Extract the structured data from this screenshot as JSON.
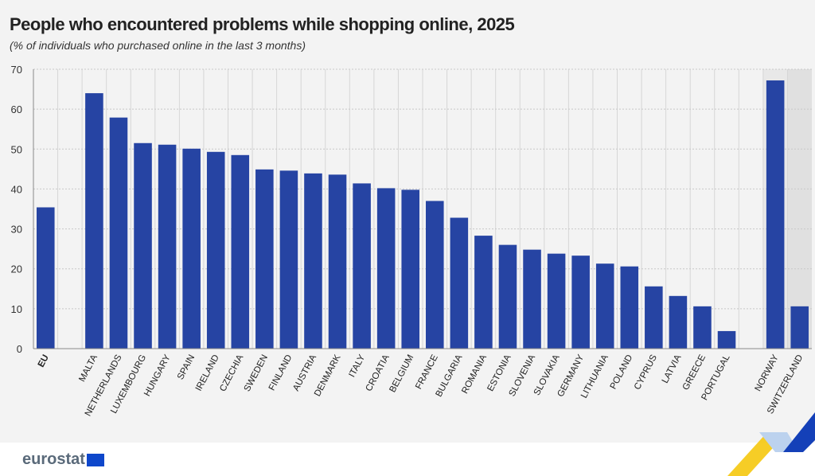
{
  "chart_data": {
    "type": "bar",
    "title": "People who encountered problems while shopping online, 2025",
    "subtitle": "(% of individuals who purchased online in the last 3 months)",
    "categories": [
      "EU",
      "",
      "MALTA",
      "NETHERLANDS",
      "LUXEMBOURG",
      "HUNGARY",
      "SPAIN",
      "IRELAND",
      "CZECHIA",
      "SWEDEN",
      "FINLAND",
      "AUSTRIA",
      "DENMARK",
      "ITALY",
      "CROATIA",
      "BELGIUM",
      "FRANCE",
      "BULGARIA",
      "ROMANIA",
      "ESTONIA",
      "SLOVENIA",
      "SLOVAKIA",
      "GERMANY",
      "LITHUANIA",
      "POLAND",
      "CYPRUS",
      "LATVIA",
      "GREECE",
      "PORTUGAL",
      "",
      "NORWAY",
      "SWITZERLAND"
    ],
    "values": [
      35.4,
      null,
      64.0,
      57.9,
      51.5,
      51.1,
      50.1,
      49.3,
      48.5,
      44.9,
      44.6,
      43.9,
      43.6,
      41.4,
      40.2,
      39.8,
      37.0,
      32.8,
      28.3,
      26.0,
      24.8,
      23.8,
      23.3,
      21.3,
      20.6,
      15.6,
      13.2,
      10.6,
      4.4,
      null,
      67.2,
      10.6
    ],
    "highlighted_categories": [
      "NORWAY",
      "SWITZERLAND"
    ],
    "yticks": [
      "0",
      "10",
      "20",
      "30",
      "40",
      "50",
      "60",
      "70"
    ],
    "ylim": [
      0,
      70
    ],
    "grid": true,
    "xlabel": "",
    "ylabel": "",
    "bar_color": "#2644a3"
  },
  "logo": {
    "text": "eurostat"
  }
}
